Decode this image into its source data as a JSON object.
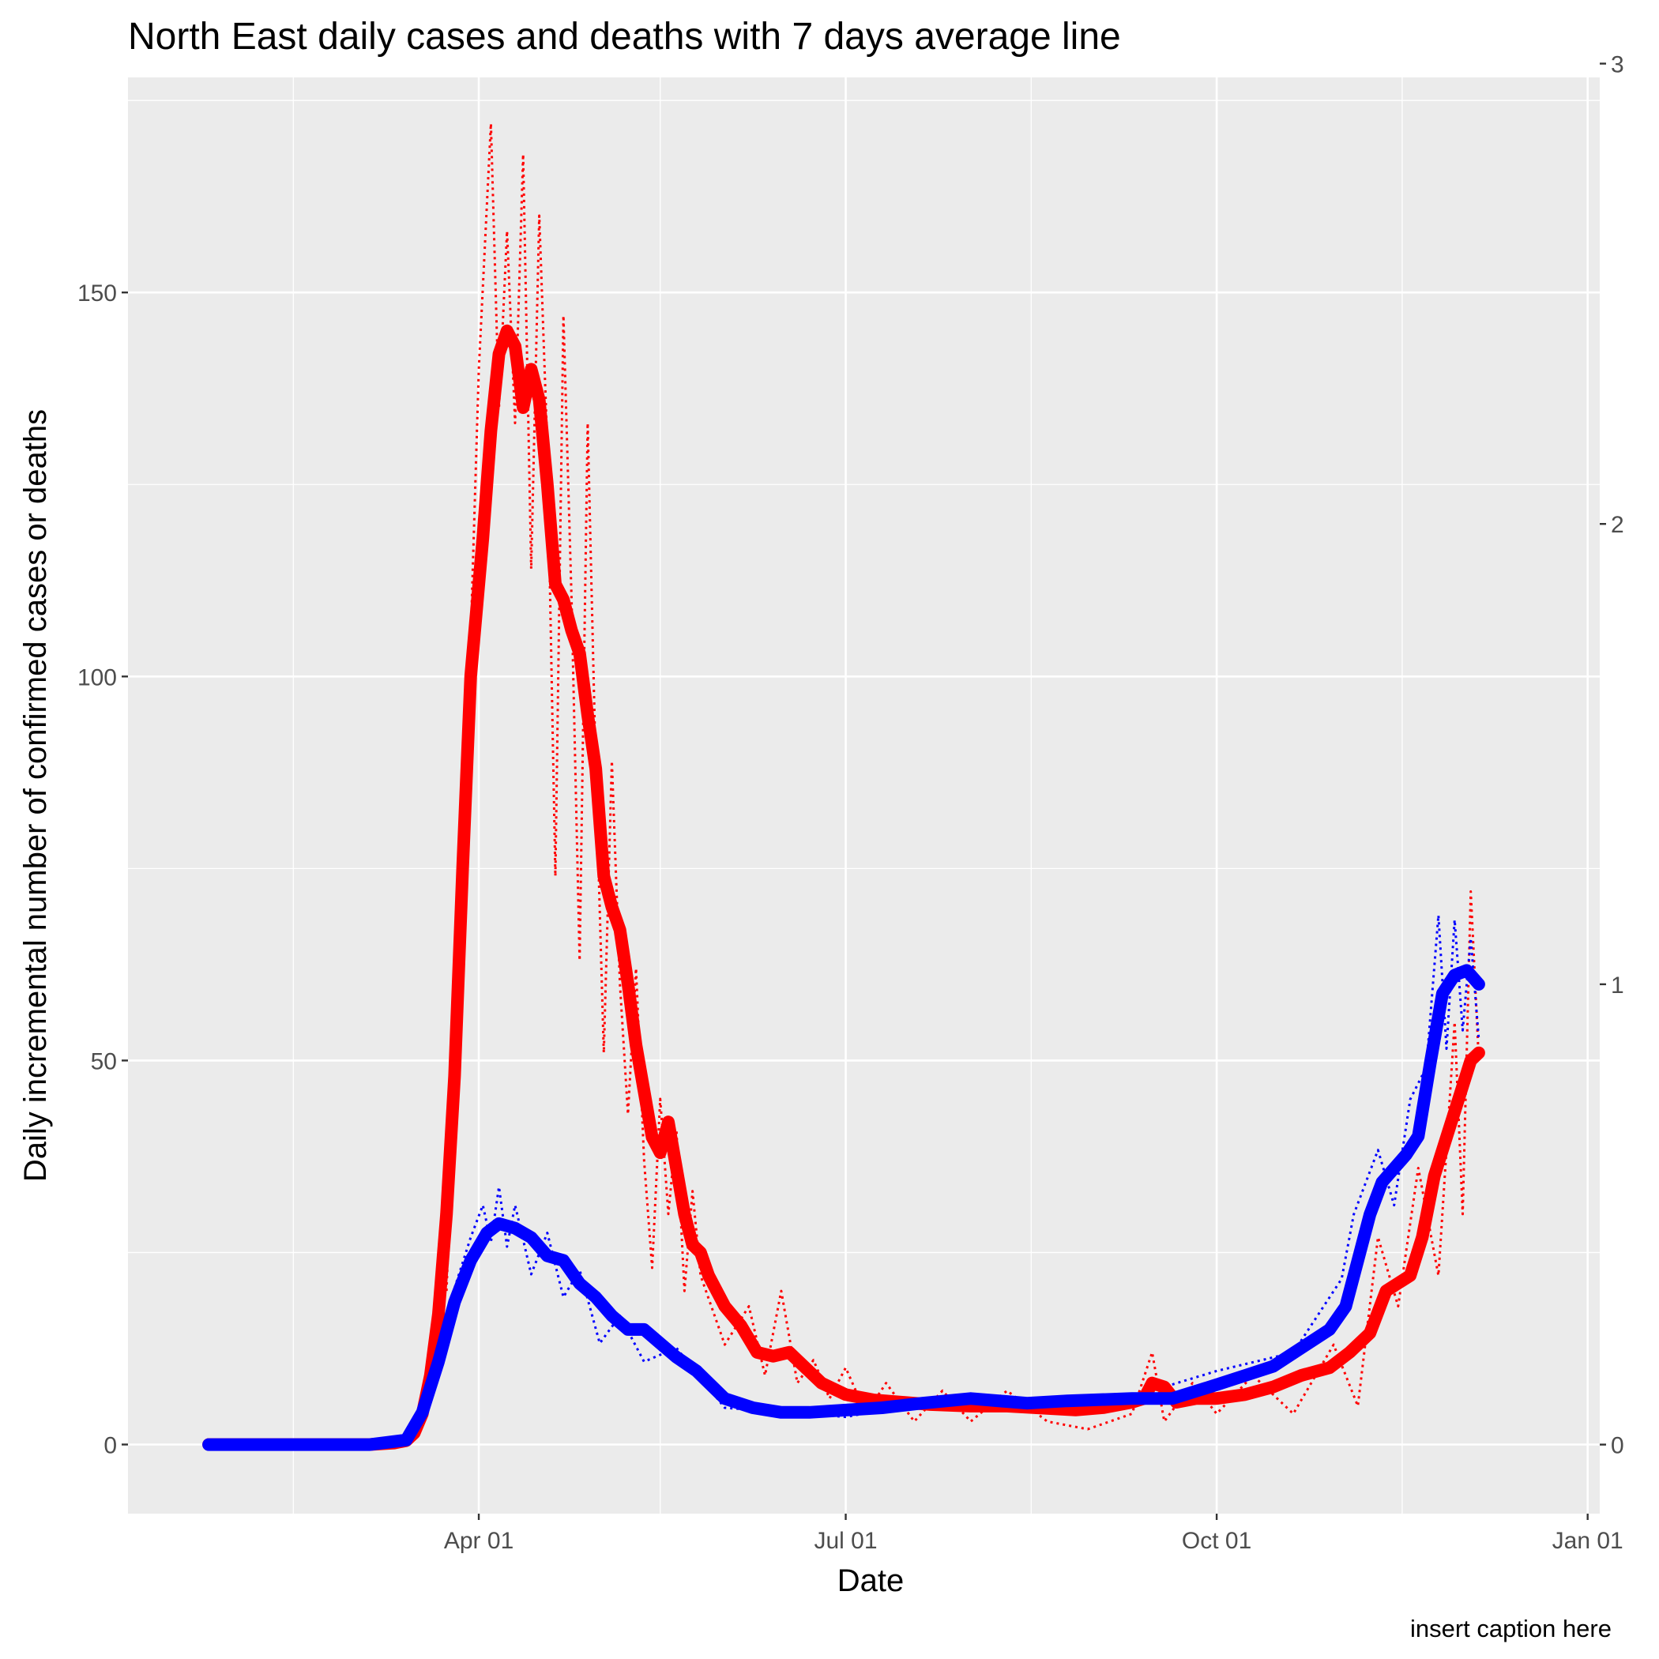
{
  "chart_data": {
    "type": "line",
    "title": "North East daily cases and deaths with 7 days average line",
    "xlabel": "Date",
    "ylabel": "Daily incremental number of confirmed cases or deaths",
    "caption": "insert caption here",
    "x_range": [
      "2020-01-05",
      "2021-01-04"
    ],
    "x_ticks": [
      {
        "date": "2020-04-01",
        "label": "Apr 01"
      },
      {
        "date": "2020-07-01",
        "label": "Jul 01"
      },
      {
        "date": "2020-10-01",
        "label": "Oct 01"
      },
      {
        "date": "2021-01-01",
        "label": "Jan 01"
      }
    ],
    "y_left": {
      "range": [
        -9,
        178
      ],
      "ticks": [
        0,
        50,
        100,
        150
      ],
      "tick_labels": [
        "0",
        "50",
        "100",
        "150"
      ]
    },
    "y_right": {
      "range": [
        -0.15,
        2.97
      ],
      "ticks": [
        0,
        1,
        2,
        3
      ],
      "tick_labels": [
        "0",
        "1",
        "2",
        "3"
      ]
    },
    "grid": true,
    "colors": {
      "panel": "#ebebeb",
      "grid": "#ffffff",
      "cases": "#ff0000",
      "deaths": "#0000ff",
      "tick": "#333333"
    },
    "series": [
      {
        "color": "#ff0000",
        "axis": "left",
        "style": "solid",
        "points": [
          [
            "2020-01-25",
            0
          ],
          [
            "2020-02-15",
            0
          ],
          [
            "2020-03-05",
            0
          ],
          [
            "2020-03-11",
            0.2
          ],
          [
            "2020-03-14",
            0.5
          ],
          [
            "2020-03-16",
            1.5
          ],
          [
            "2020-03-18",
            4
          ],
          [
            "2020-03-20",
            9
          ],
          [
            "2020-03-22",
            17
          ],
          [
            "2020-03-24",
            30
          ],
          [
            "2020-03-26",
            48
          ],
          [
            "2020-03-28",
            75
          ],
          [
            "2020-03-30",
            100
          ],
          [
            "2020-04-02",
            118
          ],
          [
            "2020-04-04",
            132
          ],
          [
            "2020-04-06",
            142
          ],
          [
            "2020-04-08",
            145
          ],
          [
            "2020-04-10",
            143
          ],
          [
            "2020-04-12",
            135
          ],
          [
            "2020-04-14",
            140
          ],
          [
            "2020-04-16",
            136
          ],
          [
            "2020-04-18",
            125
          ],
          [
            "2020-04-20",
            112
          ],
          [
            "2020-04-22",
            110
          ],
          [
            "2020-04-24",
            106
          ],
          [
            "2020-04-26",
            103
          ],
          [
            "2020-04-28",
            95
          ],
          [
            "2020-04-30",
            88
          ],
          [
            "2020-05-02",
            74
          ],
          [
            "2020-05-04",
            70
          ],
          [
            "2020-05-06",
            67
          ],
          [
            "2020-05-08",
            60
          ],
          [
            "2020-05-10",
            52
          ],
          [
            "2020-05-12",
            46
          ],
          [
            "2020-05-14",
            40
          ],
          [
            "2020-05-16",
            38
          ],
          [
            "2020-05-18",
            42
          ],
          [
            "2020-05-20",
            36
          ],
          [
            "2020-05-22",
            30
          ],
          [
            "2020-05-24",
            26
          ],
          [
            "2020-05-26",
            25
          ],
          [
            "2020-05-28",
            22
          ],
          [
            "2020-06-01",
            18
          ],
          [
            "2020-06-05",
            15.5
          ],
          [
            "2020-06-09",
            12
          ],
          [
            "2020-06-13",
            11.5
          ],
          [
            "2020-06-17",
            12
          ],
          [
            "2020-06-21",
            10
          ],
          [
            "2020-06-25",
            8
          ],
          [
            "2020-07-01",
            6.5
          ],
          [
            "2020-07-08",
            5.8
          ],
          [
            "2020-07-15",
            5.5
          ],
          [
            "2020-07-22",
            5.2
          ],
          [
            "2020-08-01",
            5
          ],
          [
            "2020-08-10",
            5
          ],
          [
            "2020-08-20",
            4.7
          ],
          [
            "2020-08-27",
            4.5
          ],
          [
            "2020-09-03",
            4.8
          ],
          [
            "2020-09-10",
            5.5
          ],
          [
            "2020-09-13",
            6
          ],
          [
            "2020-09-15",
            8
          ],
          [
            "2020-09-18",
            7.5
          ],
          [
            "2020-09-21",
            5.5
          ],
          [
            "2020-09-26",
            6
          ],
          [
            "2020-10-01",
            6
          ],
          [
            "2020-10-08",
            6.5
          ],
          [
            "2020-10-15",
            7.5
          ],
          [
            "2020-10-22",
            9
          ],
          [
            "2020-10-29",
            10
          ],
          [
            "2020-11-03",
            12
          ],
          [
            "2020-11-08",
            14.5
          ],
          [
            "2020-11-12",
            20
          ],
          [
            "2020-11-15",
            21
          ],
          [
            "2020-11-18",
            22
          ],
          [
            "2020-11-21",
            27
          ],
          [
            "2020-11-24",
            35
          ],
          [
            "2020-11-27",
            40
          ],
          [
            "2020-11-30",
            45
          ],
          [
            "2020-12-03",
            50
          ],
          [
            "2020-12-05",
            51
          ]
        ]
      },
      {
        "color": "#0000ff",
        "axis": "right",
        "style": "solid",
        "points": [
          [
            "2020-01-25",
            0
          ],
          [
            "2020-03-05",
            0
          ],
          [
            "2020-03-14",
            0.01
          ],
          [
            "2020-03-18",
            0.07
          ],
          [
            "2020-03-22",
            0.18
          ],
          [
            "2020-03-26",
            0.31
          ],
          [
            "2020-03-30",
            0.4
          ],
          [
            "2020-04-03",
            0.46
          ],
          [
            "2020-04-06",
            0.48
          ],
          [
            "2020-04-10",
            0.47
          ],
          [
            "2020-04-14",
            0.45
          ],
          [
            "2020-04-18",
            0.41
          ],
          [
            "2020-04-22",
            0.4
          ],
          [
            "2020-04-26",
            0.35
          ],
          [
            "2020-04-30",
            0.32
          ],
          [
            "2020-05-04",
            0.28
          ],
          [
            "2020-05-08",
            0.25
          ],
          [
            "2020-05-12",
            0.25
          ],
          [
            "2020-05-16",
            0.22
          ],
          [
            "2020-05-20",
            0.19
          ],
          [
            "2020-05-25",
            0.16
          ],
          [
            "2020-06-01",
            0.1
          ],
          [
            "2020-06-08",
            0.08
          ],
          [
            "2020-06-15",
            0.07
          ],
          [
            "2020-06-22",
            0.07
          ],
          [
            "2020-07-01",
            0.075
          ],
          [
            "2020-07-10",
            0.08
          ],
          [
            "2020-07-20",
            0.09
          ],
          [
            "2020-08-01",
            0.1
          ],
          [
            "2020-08-15",
            0.09
          ],
          [
            "2020-08-25",
            0.095
          ],
          [
            "2020-09-10",
            0.1
          ],
          [
            "2020-09-20",
            0.1
          ],
          [
            "2020-10-01",
            0.13
          ],
          [
            "2020-10-08",
            0.15
          ],
          [
            "2020-10-15",
            0.17
          ],
          [
            "2020-10-22",
            0.21
          ],
          [
            "2020-10-29",
            0.25
          ],
          [
            "2020-11-02",
            0.3
          ],
          [
            "2020-11-05",
            0.4
          ],
          [
            "2020-11-08",
            0.5
          ],
          [
            "2020-11-11",
            0.57
          ],
          [
            "2020-11-14",
            0.6
          ],
          [
            "2020-11-17",
            0.63
          ],
          [
            "2020-11-20",
            0.67
          ],
          [
            "2020-11-23",
            0.83
          ],
          [
            "2020-11-26",
            0.98
          ],
          [
            "2020-11-29",
            1.02
          ],
          [
            "2020-12-02",
            1.03
          ],
          [
            "2020-12-05",
            1.0
          ]
        ]
      },
      {
        "color": "#ff0000",
        "axis": "left",
        "style": "dotted",
        "points": [
          [
            "2020-03-24",
            20
          ],
          [
            "2020-03-27",
            60
          ],
          [
            "2020-03-30",
            105
          ],
          [
            "2020-04-01",
            140
          ],
          [
            "2020-04-04",
            172
          ],
          [
            "2020-04-06",
            135
          ],
          [
            "2020-04-08",
            158
          ],
          [
            "2020-04-10",
            133
          ],
          [
            "2020-04-12",
            168
          ],
          [
            "2020-04-14",
            114
          ],
          [
            "2020-04-16",
            160
          ],
          [
            "2020-04-18",
            130
          ],
          [
            "2020-04-20",
            74
          ],
          [
            "2020-04-22",
            147
          ],
          [
            "2020-04-24",
            110
          ],
          [
            "2020-04-26",
            63
          ],
          [
            "2020-04-28",
            133
          ],
          [
            "2020-04-30",
            88
          ],
          [
            "2020-05-02",
            51
          ],
          [
            "2020-05-04",
            89
          ],
          [
            "2020-05-06",
            60
          ],
          [
            "2020-05-08",
            43
          ],
          [
            "2020-05-10",
            62
          ],
          [
            "2020-05-12",
            37
          ],
          [
            "2020-05-14",
            23
          ],
          [
            "2020-05-16",
            45
          ],
          [
            "2020-05-18",
            30
          ],
          [
            "2020-05-20",
            41
          ],
          [
            "2020-05-22",
            20
          ],
          [
            "2020-05-24",
            33
          ],
          [
            "2020-05-26",
            22
          ],
          [
            "2020-06-01",
            13
          ],
          [
            "2020-06-07",
            18
          ],
          [
            "2020-06-11",
            9
          ],
          [
            "2020-06-15",
            20
          ],
          [
            "2020-06-19",
            8
          ],
          [
            "2020-06-23",
            11
          ],
          [
            "2020-06-27",
            6
          ],
          [
            "2020-07-01",
            10
          ],
          [
            "2020-07-06",
            4
          ],
          [
            "2020-07-11",
            8
          ],
          [
            "2020-07-18",
            3
          ],
          [
            "2020-07-25",
            7
          ],
          [
            "2020-08-01",
            3
          ],
          [
            "2020-08-10",
            7
          ],
          [
            "2020-08-20",
            3
          ],
          [
            "2020-08-30",
            2
          ],
          [
            "2020-09-10",
            4
          ],
          [
            "2020-09-15",
            12
          ],
          [
            "2020-09-18",
            3
          ],
          [
            "2020-09-25",
            8
          ],
          [
            "2020-10-01",
            4
          ],
          [
            "2020-10-10",
            9
          ],
          [
            "2020-10-20",
            4
          ],
          [
            "2020-10-30",
            13
          ],
          [
            "2020-11-05",
            5
          ],
          [
            "2020-11-10",
            27
          ],
          [
            "2020-11-15",
            18
          ],
          [
            "2020-11-20",
            36
          ],
          [
            "2020-11-25",
            22
          ],
          [
            "2020-11-29",
            55
          ],
          [
            "2020-12-01",
            30
          ],
          [
            "2020-12-03",
            72
          ],
          [
            "2020-12-05",
            50
          ]
        ]
      },
      {
        "color": "#0000ff",
        "axis": "right",
        "style": "dotted",
        "points": [
          [
            "2020-03-26",
            0.34
          ],
          [
            "2020-03-30",
            0.45
          ],
          [
            "2020-04-02",
            0.52
          ],
          [
            "2020-04-04",
            0.44
          ],
          [
            "2020-04-06",
            0.56
          ],
          [
            "2020-04-08",
            0.43
          ],
          [
            "2020-04-10",
            0.52
          ],
          [
            "2020-04-14",
            0.37
          ],
          [
            "2020-04-18",
            0.46
          ],
          [
            "2020-04-22",
            0.32
          ],
          [
            "2020-04-26",
            0.38
          ],
          [
            "2020-05-01",
            0.22
          ],
          [
            "2020-05-06",
            0.28
          ],
          [
            "2020-05-12",
            0.18
          ],
          [
            "2020-05-20",
            0.21
          ],
          [
            "2020-06-01",
            0.08
          ],
          [
            "2020-07-01",
            0.06
          ],
          [
            "2020-08-01",
            0.11
          ],
          [
            "2020-09-01",
            0.08
          ],
          [
            "2020-10-01",
            0.16
          ],
          [
            "2020-10-20",
            0.2
          ],
          [
            "2020-11-01",
            0.36
          ],
          [
            "2020-11-04",
            0.5
          ],
          [
            "2020-11-10",
            0.64
          ],
          [
            "2020-11-14",
            0.52
          ],
          [
            "2020-11-18",
            0.75
          ],
          [
            "2020-11-22",
            0.82
          ],
          [
            "2020-11-25",
            1.15
          ],
          [
            "2020-11-27",
            0.86
          ],
          [
            "2020-11-29",
            1.14
          ],
          [
            "2020-12-01",
            0.9
          ],
          [
            "2020-12-03",
            1.1
          ],
          [
            "2020-12-05",
            0.88
          ]
        ]
      }
    ]
  }
}
